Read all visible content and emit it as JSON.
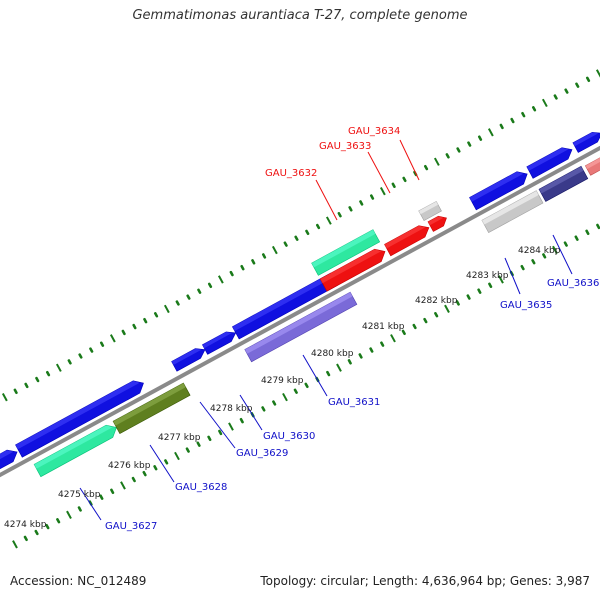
{
  "title": "Gemmatimonas aurantiaca T-27, complete genome",
  "footer": {
    "accession": "Accession: NC_012489",
    "stats": "Topology: circular; Length: 4,636,964 bp; Genes: 3,987"
  },
  "scale_labels": [
    "4274 kbp",
    "4275 kbp",
    "4276 kbp",
    "4277 kbp",
    "4278 kbp",
    "4279 kbp",
    "4280 kbp",
    "4281 kbp",
    "4282 kbp",
    "4283 kbp",
    "4284 kbp"
  ],
  "colors": {
    "backbone": "#8a8a8a",
    "blue": "#1010e0",
    "red": "#ee1111",
    "teal": "#2ee8a0",
    "olive": "#5f7f1f",
    "lavender": "#7a6ad8",
    "gray": "#c8c8c8",
    "navy": "#3a3a8a",
    "pink": "#e87878",
    "tick_green": "#1a7a1a",
    "label_red": "#ee1111",
    "label_blue": "#1010c8"
  },
  "labeled_genes": [
    {
      "name": "GAU_3627",
      "color": "blue"
    },
    {
      "name": "GAU_3628",
      "color": "blue"
    },
    {
      "name": "GAU_3629",
      "color": "blue"
    },
    {
      "name": "GAU_3630",
      "color": "blue"
    },
    {
      "name": "GAU_3631",
      "color": "blue"
    },
    {
      "name": "GAU_3632",
      "color": "red"
    },
    {
      "name": "GAU_3633",
      "color": "red"
    },
    {
      "name": "GAU_3634",
      "color": "red"
    },
    {
      "name": "GAU_3635",
      "color": "blue"
    },
    {
      "name": "GAU_3636",
      "color": "blue"
    }
  ]
}
